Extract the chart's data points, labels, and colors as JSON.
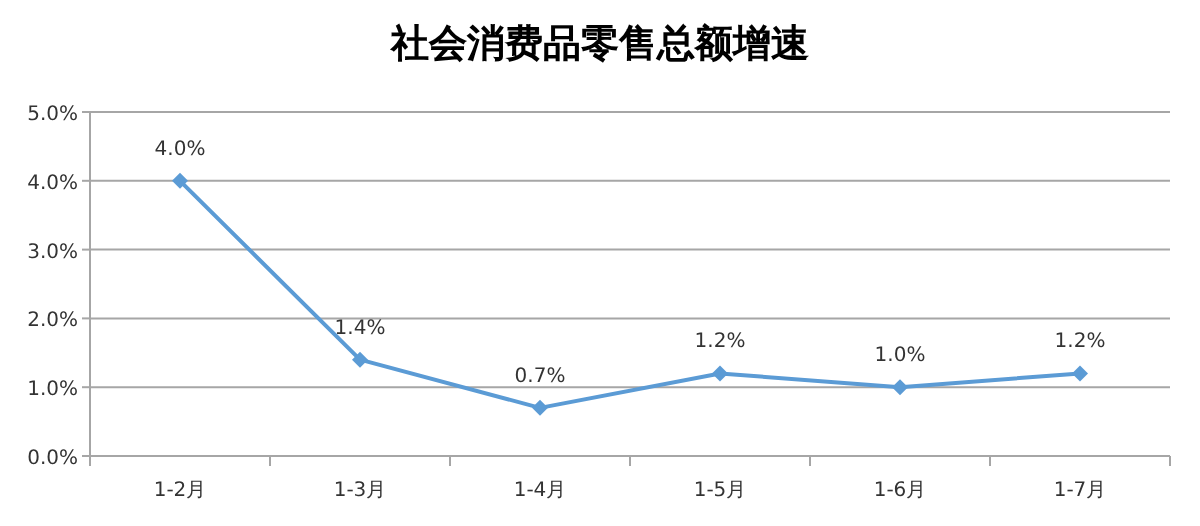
{
  "chart_data": {
    "type": "line",
    "title": "社会消费品零售总额增速",
    "categories": [
      "1-2月",
      "1-3月",
      "1-4月",
      "1-5月",
      "1-6月",
      "1-7月"
    ],
    "series": [
      {
        "color": "#5b9bd5",
        "values": [
          4.0,
          1.4,
          0.7,
          1.2,
          1.0,
          1.2
        ],
        "value_labels": [
          "4.0%",
          "1.4%",
          "0.7%",
          "1.2%",
          "1.0%",
          "1.2%"
        ]
      }
    ],
    "ylim": [
      0,
      5
    ],
    "yticks": [
      {
        "value": 0,
        "label": "0.0%"
      },
      {
        "value": 1,
        "label": "1.0%"
      },
      {
        "value": 2,
        "label": "2.0%"
      },
      {
        "value": 3,
        "label": "3.0%"
      },
      {
        "value": 4,
        "label": "4.0%"
      },
      {
        "value": 5,
        "label": "5.0%"
      }
    ],
    "grid": "y",
    "marker": "diamond",
    "line_style": "solid"
  }
}
